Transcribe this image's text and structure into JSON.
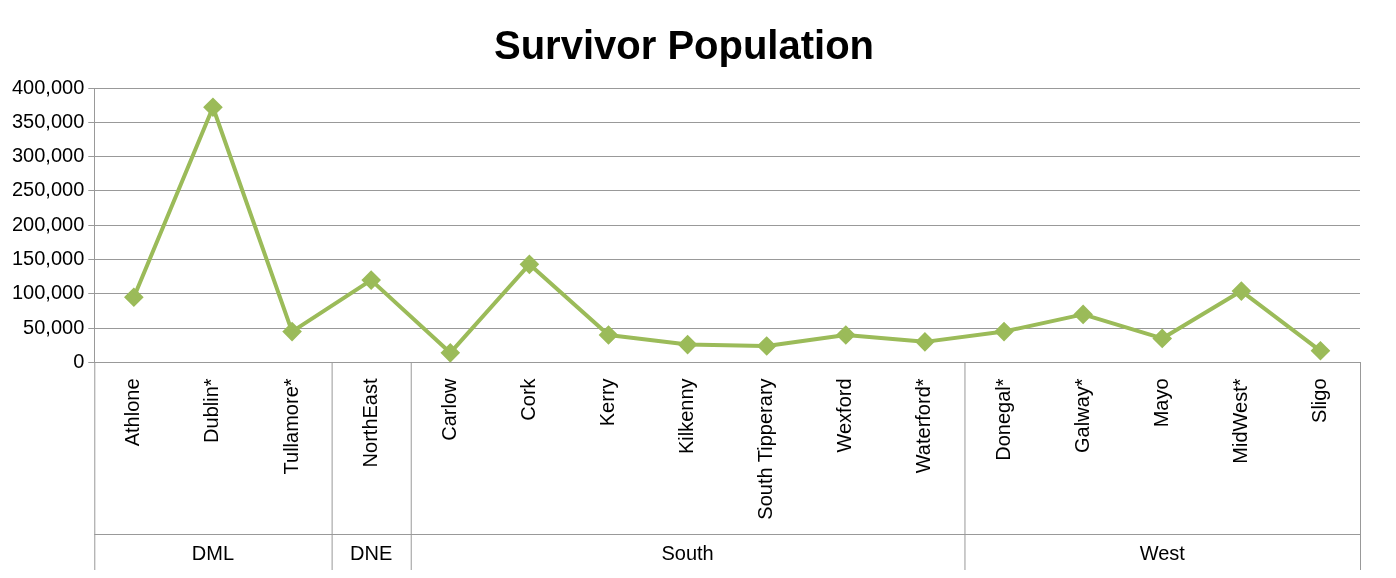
{
  "chart_data": {
    "type": "line",
    "title": "Survivor Population",
    "categories": [
      "Athlone",
      "Dublin*",
      "Tullamore*",
      "NorthEast",
      "Carlow",
      "Cork",
      "Kerry",
      "Kilkenny",
      "South Tipperary",
      "Wexford",
      "Waterford*",
      "Donegal*",
      "Galway*",
      "Mayo",
      "MidWest*",
      "Sligo"
    ],
    "series": [
      {
        "color": "#9bbb59",
        "values": [
          95000,
          372000,
          45000,
          120000,
          14000,
          143000,
          40000,
          26000,
          24000,
          40000,
          30000,
          45000,
          70000,
          35000,
          104000,
          17000
        ]
      }
    ],
    "ylim": [
      0,
      400000
    ],
    "yticks": [
      0,
      {
        "value": 50000,
        "label": "50,000"
      },
      {
        "value": 100000,
        "label": "100,000"
      },
      {
        "value": 150000,
        "label": "150,000"
      },
      {
        "value": 200000,
        "label": "200,000"
      },
      {
        "value": 250000,
        "label": "250,000"
      },
      {
        "value": 300000,
        "label": "300,000"
      },
      {
        "value": 350000,
        "label": "350,000"
      },
      {
        "value": 400000,
        "label": "400,000"
      }
    ],
    "grid": "y",
    "legend": false,
    "marker": "diamond",
    "line_style": "solid",
    "annotations": [
      "DML",
      "DNE",
      "South",
      "West"
    ]
  }
}
